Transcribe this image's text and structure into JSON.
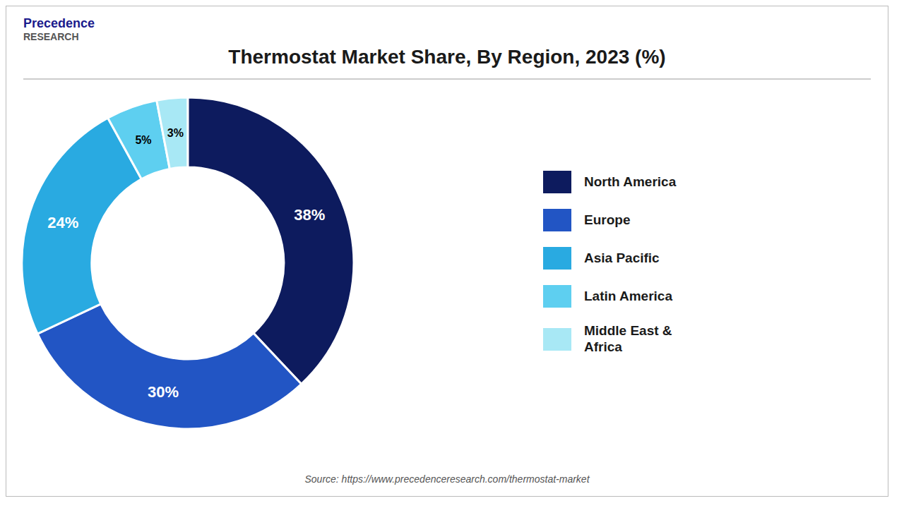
{
  "chart_data": {
    "type": "pie",
    "title": "Thermostat Market Share, By Region, 2023 (%)",
    "categories": [
      "North America",
      "Europe",
      "Asia Pacific",
      "Latin America",
      "Middle East &\nAfrica"
    ],
    "values": [
      38,
      30,
      24,
      5,
      3
    ],
    "value_labels": [
      "38%",
      "30%",
      "24%",
      "5%",
      "3%"
    ],
    "colors": [
      "#0d1b5e",
      "#2255c4",
      "#29aae1",
      "#5ecff0",
      "#a8e8f5"
    ],
    "data_labels": true,
    "legend": "right",
    "annotations": [
      "Precedence",
      "RESEARCH",
      "Source: https://www.precedenceresearch.com/thermostat-market"
    ]
  }
}
